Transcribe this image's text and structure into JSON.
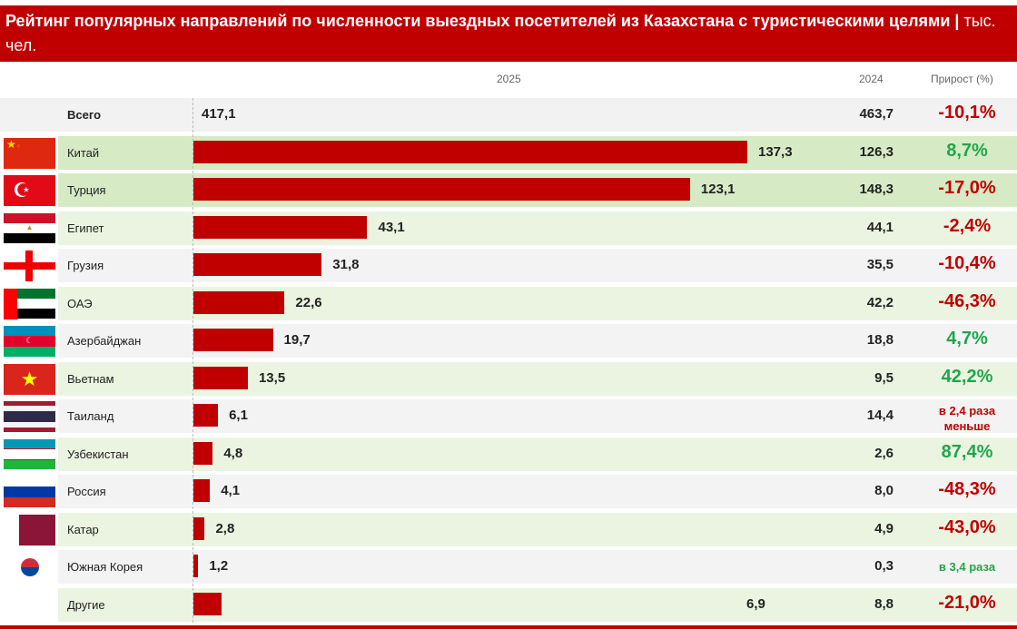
{
  "chart_data": {
    "type": "bar",
    "orientation": "horizontal",
    "title": "Рейтинг популярных направлений по численности выездных посетителей из Казахстана с туристическими целями",
    "unit": "тыс. чел.",
    "column_headers": {
      "bars": "2025",
      "prev": "2024",
      "growth": "Прирост (%)"
    },
    "total": {
      "name": "Всего",
      "v2025": "417,1",
      "v2024": "463,7",
      "growth": "-10,1%",
      "growth_color": "#c00000"
    },
    "categories": [
      "Китай",
      "Турция",
      "Египет",
      "Грузия",
      "ОАЭ",
      "Азербайджан",
      "Вьетнам",
      "Таиланд",
      "Узбекистан",
      "Россия",
      "Катар",
      "Южная Корея",
      "Другие"
    ],
    "values": [
      137.3,
      123.1,
      43.1,
      31.8,
      22.6,
      19.7,
      13.5,
      6.1,
      4.8,
      4.1,
      2.8,
      1.2,
      6.9
    ],
    "labels_2025": [
      "137,3",
      "123,1",
      "43,1",
      "31,8",
      "22,6",
      "19,7",
      "13,5",
      "6,1",
      "4,8",
      "4,1",
      "2,8",
      "1,2",
      "6,9"
    ],
    "labels_2024": [
      "126,3",
      "148,3",
      "44,1",
      "35,5",
      "42,2",
      "18,8",
      "9,5",
      "14,4",
      "2,6",
      "8,0",
      "4,9",
      "0,3",
      "8,8"
    ],
    "growth": [
      "8,7%",
      "-17,0%",
      "-2,4%",
      "-10,4%",
      "-46,3%",
      "4,7%",
      "42,2%",
      "в 2,4 раза меньше",
      "87,4%",
      "-48,3%",
      "-43,0%",
      "в 3,4 раза",
      "-21,0%"
    ],
    "growth_positive": [
      true,
      false,
      false,
      false,
      false,
      true,
      true,
      false,
      true,
      false,
      false,
      true,
      false
    ],
    "flags": [
      "china",
      "turkey",
      "egypt",
      "georgia",
      "uae",
      "azerbaijan",
      "vietnam",
      "thailand",
      "uzbekistan",
      "russia",
      "qatar",
      "south-korea",
      ""
    ],
    "bar_color": "#c00000",
    "positive_color": "#1fa64a",
    "negative_color": "#c00000"
  }
}
